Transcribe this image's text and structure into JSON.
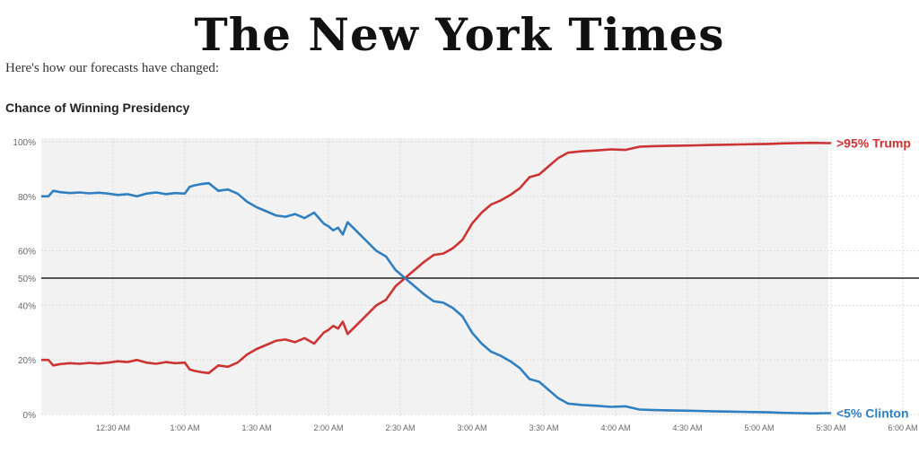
{
  "masthead": {
    "title": "The New York Times"
  },
  "intro": {
    "text": "Here's how our forecasts have changed:"
  },
  "chart_data": {
    "type": "line",
    "title": "Chance of Winning Presidency",
    "y_ticks": [
      "0%",
      "20%",
      "40%",
      "50%",
      "60%",
      "80%",
      "100%"
    ],
    "y_tick_values": [
      0,
      20,
      40,
      50,
      60,
      80,
      100
    ],
    "x_ticks": [
      "12:30 AM",
      "1:00 AM",
      "1:30 AM",
      "2:00 AM",
      "2:30 AM",
      "3:00 AM",
      "3:30 AM",
      "4:00 AM",
      "4:30 AM",
      "5:00 AM",
      "5:30 AM",
      "6:00 AM"
    ],
    "x_tick_minutes": [
      30,
      60,
      90,
      120,
      150,
      180,
      210,
      240,
      270,
      300,
      330,
      360
    ],
    "xlim_minutes": [
      0,
      360
    ],
    "ylim": [
      0,
      100
    ],
    "reference_line": 50,
    "grid": true,
    "series": [
      {
        "name": "Trump",
        "color": "#cc3333",
        "end_label": ">95% Trump",
        "x": [
          0,
          3,
          5,
          8,
          12,
          16,
          20,
          24,
          28,
          32,
          36,
          40,
          44,
          48,
          52,
          56,
          60,
          62,
          64,
          67,
          70,
          74,
          78,
          82,
          86,
          90,
          94,
          98,
          102,
          106,
          110,
          114,
          118,
          120,
          122,
          124,
          126,
          128,
          132,
          136,
          140,
          144,
          148,
          152,
          156,
          160,
          164,
          168,
          172,
          176,
          180,
          184,
          188,
          192,
          196,
          200,
          204,
          208,
          212,
          216,
          220,
          226,
          232,
          238,
          244,
          250,
          256,
          262,
          268,
          274,
          280,
          286,
          292,
          298,
          304,
          310,
          316,
          322,
          328,
          330
        ],
        "y": [
          20,
          20,
          18,
          18.5,
          18.8,
          18.6,
          18.9,
          18.7,
          19,
          19.5,
          19.2,
          20,
          19,
          18.6,
          19.2,
          18.8,
          19,
          16.5,
          16,
          15.5,
          15.2,
          18,
          17.5,
          19,
          22,
          24,
          25.5,
          27,
          27.5,
          26.5,
          28,
          26,
          30,
          31,
          32.5,
          31.5,
          34,
          29.5,
          33,
          36.5,
          40,
          42,
          47,
          50,
          53,
          56,
          58.5,
          59,
          61,
          64,
          70,
          74,
          77,
          78.5,
          80.5,
          83,
          87,
          88,
          91,
          94,
          96,
          96.5,
          96.8,
          97.2,
          97,
          98.2,
          98.4,
          98.5,
          98.6,
          98.7,
          98.8,
          98.9,
          99,
          99.1,
          99.2,
          99.4,
          99.5,
          99.6,
          99.5,
          99.5
        ]
      },
      {
        "name": "Clinton",
        "color": "#2f7fc1",
        "end_label": "<5% Clinton",
        "x": [
          0,
          3,
          5,
          8,
          12,
          16,
          20,
          24,
          28,
          32,
          36,
          40,
          44,
          48,
          52,
          56,
          60,
          62,
          64,
          67,
          70,
          74,
          78,
          82,
          86,
          90,
          94,
          98,
          102,
          106,
          110,
          114,
          118,
          120,
          122,
          124,
          126,
          128,
          132,
          136,
          140,
          144,
          148,
          152,
          156,
          160,
          164,
          168,
          172,
          176,
          180,
          184,
          188,
          192,
          196,
          200,
          204,
          208,
          212,
          216,
          220,
          226,
          232,
          238,
          244,
          250,
          256,
          262,
          268,
          274,
          280,
          286,
          292,
          298,
          304,
          310,
          316,
          322,
          328,
          330
        ],
        "y": [
          80,
          80,
          82,
          81.5,
          81.2,
          81.4,
          81.1,
          81.3,
          81,
          80.5,
          80.8,
          80,
          81,
          81.4,
          80.8,
          81.2,
          81,
          83.5,
          84,
          84.5,
          84.8,
          82,
          82.5,
          81,
          78,
          76,
          74.5,
          73,
          72.5,
          73.5,
          72,
          74,
          70,
          69,
          67.5,
          68.5,
          66,
          70.5,
          67,
          63.5,
          60,
          58,
          53,
          50,
          47,
          44,
          41.5,
          41,
          39,
          36,
          30,
          26,
          23,
          21.5,
          19.5,
          17,
          13,
          12,
          9,
          6,
          4,
          3.5,
          3.2,
          2.8,
          3,
          1.8,
          1.6,
          1.5,
          1.4,
          1.3,
          1.2,
          1.1,
          1,
          0.9,
          0.8,
          0.6,
          0.5,
          0.4,
          0.5,
          0.5
        ]
      }
    ]
  }
}
